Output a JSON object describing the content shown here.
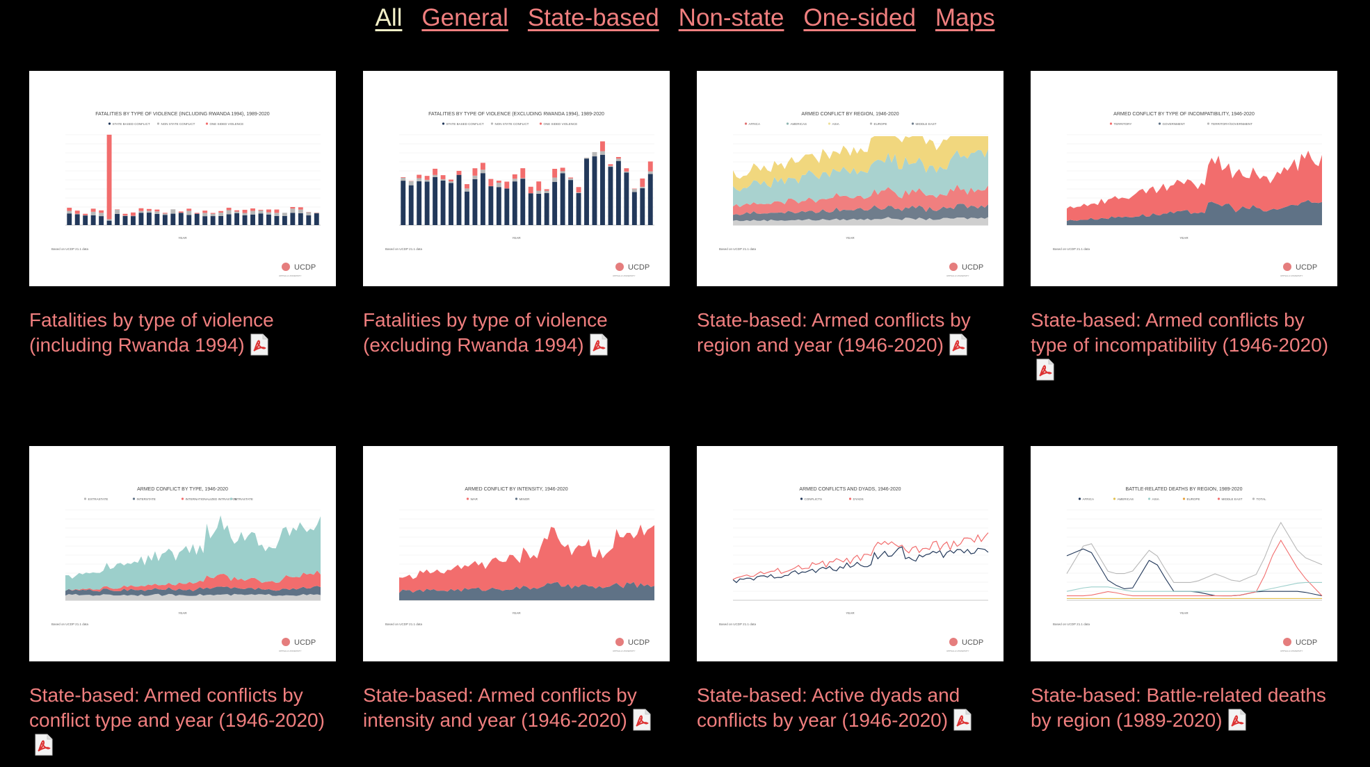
{
  "nav": {
    "items": [
      {
        "label": "All",
        "active": true
      },
      {
        "label": "General",
        "active": false
      },
      {
        "label": "State-based",
        "active": false
      },
      {
        "label": "Non-state",
        "active": false
      },
      {
        "label": "One-sided",
        "active": false
      },
      {
        "label": "Maps",
        "active": false
      }
    ]
  },
  "cards": [
    {
      "caption": "Fatalities by type of violence (including Rwanda 1994)",
      "thumb": {
        "title": "FATALITIES BY TYPE OF VIOLENCE (INCLUDING RWANDA 1994), 1989-2020",
        "legend": [
          "STATE BASED CONFLICT",
          "NON STATE CONFLICT",
          "ONE SIDED VIOLENCE"
        ],
        "xlabel": "YEAR",
        "footnote": "Based on UCDP 21.1 data",
        "kind": "bar-incl"
      }
    },
    {
      "caption": "Fatalities by type of violence (excluding Rwanda 1994)",
      "thumb": {
        "title": "FATALITIES BY TYPE OF VIOLENCE (EXCLUDING RWANDA 1994), 1989-2020",
        "legend": [
          "STATE BASED CONFLICT",
          "NON STATE CONFLICT",
          "ONE SIDED VIOLENCE"
        ],
        "xlabel": "YEAR",
        "footnote": "Based on UCDP 21.1 data",
        "kind": "bar-excl"
      }
    },
    {
      "caption": "State-based: Armed conflicts by region and year (1946-2020)",
      "thumb": {
        "title": "ARMED CONFLICT BY REGION, 1946-2020",
        "legend": [
          "AFRICA",
          "AMERICAS",
          "ASIA",
          "EUROPE",
          "MIDDLE EAST"
        ],
        "xlabel": "YEAR",
        "footnote": "Based on UCDP 21.1 data",
        "kind": "area-region"
      }
    },
    {
      "caption": "State-based: Armed conflicts by type of incompatibility (1946-2020)",
      "thumb": {
        "title": "ARMED CONFLICT BY TYPE OF INCOMPATIBILITY, 1946-2020",
        "legend": [
          "TERRITORY",
          "GOVERNMENT",
          "TERRITORY/GOVERNMENT"
        ],
        "xlabel": "YEAR",
        "footnote": "Based on UCDP 21.1 data",
        "kind": "area-incomp"
      }
    },
    {
      "caption": "State-based: Armed conflicts by conflict type and year (1946-2020)",
      "thumb": {
        "title": "ARMED CONFLICT BY TYPE, 1946-2020",
        "legend": [
          "EXTRASTATE",
          "INTERSTATE",
          "INTERNATIONALIZED INTRASTATE",
          "INTRASTATE"
        ],
        "xlabel": "YEAR",
        "footnote": "Based on UCDP 21.1 data",
        "kind": "area-type"
      }
    },
    {
      "caption": "State-based: Armed conflicts by intensity and year (1946-2020)",
      "thumb": {
        "title": "ARMED CONFLICT BY INTENSITY, 1946-2020",
        "legend": [
          "WAR",
          "MINOR"
        ],
        "xlabel": "YEAR",
        "footnote": "Based on UCDP 21.1 data",
        "kind": "area-intensity"
      }
    },
    {
      "caption": "State-based: Active dyads and conflicts by year (1946-2020)",
      "thumb": {
        "title": "ARMED CONFLICTS AND DYADS, 1946-2020",
        "legend": [
          "CONFLICTS",
          "DYADS"
        ],
        "xlabel": "YEAR",
        "footnote": "Based on UCDP 21.1 data",
        "kind": "line-dyads"
      }
    },
    {
      "caption": "State-based: Battle-related deaths by region (1989-2020)",
      "thumb": {
        "title": "BATTLE-RELATED DEATHS BY REGION, 1989-2020",
        "legend": [
          "AFRICA",
          "AMERICAS",
          "ASIA",
          "EUROPE",
          "MIDDLE EAST",
          "TOTAL"
        ],
        "xlabel": "YEAR",
        "footnote": "Based on UCDP 21.1 data",
        "kind": "line-deaths"
      }
    }
  ],
  "brand": {
    "logo_text": "UCDP",
    "logo_sub": "UPPSALA UNIVERSITY"
  },
  "colors": {
    "accent": "#f07f7f",
    "nav_active": "#f2efc7",
    "navy": "#22385a",
    "red": "#f26d6d",
    "gray": "#b8b8b8",
    "teal": "#9ccfcb",
    "yellow": "#f1d77e",
    "slate": "#5f7286"
  }
}
